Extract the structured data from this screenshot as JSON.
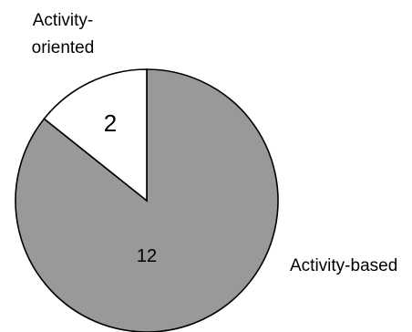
{
  "chart_data": {
    "type": "pie",
    "categories": [
      "Activity-based",
      "Activity-oriented"
    ],
    "values": [
      12,
      2
    ],
    "slice_labels": [
      "12",
      "2"
    ],
    "category_label_lines": [
      [
        "Activity-based"
      ],
      [
        "Activity-",
        "oriented"
      ]
    ],
    "colors": [
      "#999999",
      "#ffffff"
    ],
    "outline_color": "#000000",
    "start_angle_deg": 0,
    "direction": "clockwise"
  }
}
